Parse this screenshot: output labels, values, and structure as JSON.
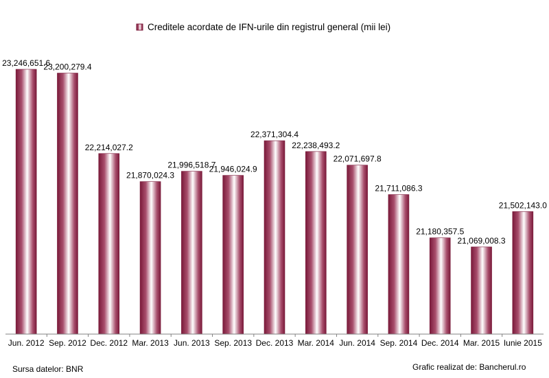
{
  "chart_data": {
    "type": "bar",
    "title": "",
    "xlabel": "",
    "ylabel": "",
    "legend": {
      "label": "Creditele acordate de IFN-urile din registrul general (mii lei)",
      "position": "top"
    },
    "ylim": [
      20000000,
      23600000
    ],
    "grid": false,
    "categories": [
      "Jun. 2012",
      "Sep. 2012",
      "Dec. 2012",
      "Mar. 2013",
      "Jun. 2013",
      "Sep. 2013",
      "Dec. 2013",
      "Mar. 2014",
      "Jun. 2014",
      "Sep. 2014",
      "Dec. 2014",
      "Mar. 2015",
      "Iunie 2015"
    ],
    "values": [
      23246651.6,
      23200279.4,
      22214027.2,
      21870024.3,
      21996518.7,
      21946024.9,
      22371304.4,
      22238493.2,
      22071697.8,
      21711086.3,
      21180357.5,
      21069008.3,
      21502143.0
    ],
    "data_labels": [
      "23,246,651.6",
      "23,200,279.4",
      "22,214,027.2",
      "21,870,024.3",
      "21,996,518.7",
      "21,946,024.9",
      "22,371,304.4",
      "22,238,493.2",
      "22,071,697.8",
      "21,711,086.3",
      "21,180,357.5",
      "21,069,008.3",
      "21,502,143.0"
    ],
    "colors": {
      "bar_edge": "#7a1a3a",
      "bar_mid": "#a84e6c",
      "bar_highlight": "#ffffff",
      "axis": "#808080"
    }
  },
  "footer": {
    "source": "Sursa datelor: BNR",
    "credit": "Grafic realizat de: Bancherul.ro"
  }
}
